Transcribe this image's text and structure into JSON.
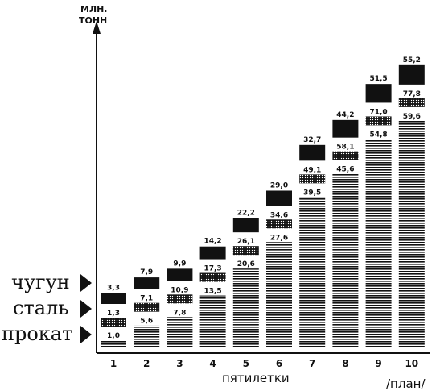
{
  "chart_data": {
    "type": "bar",
    "ylabel_lines": [
      "МЛН.",
      "ТОНН"
    ],
    "xlabel": "пятилетки",
    "categories": [
      "1",
      "2",
      "3",
      "4",
      "5",
      "6",
      "7",
      "8",
      "9",
      "10"
    ],
    "category_note": "/план/",
    "series": [
      {
        "name": "чугун",
        "values": [
          3.3,
          7.9,
          9.9,
          14.2,
          22.2,
          29.0,
          32.7,
          44.2,
          51.5,
          55.2
        ],
        "labels": [
          "3,3",
          "7,9",
          "9,9",
          "14,2",
          "22,2",
          "29,0",
          "32,7",
          "44,2",
          "51,5",
          "55,2"
        ]
      },
      {
        "name": "сталь",
        "values": [
          1.3,
          7.1,
          10.9,
          17.3,
          26.1,
          34.6,
          49.1,
          58.1,
          71.0,
          77.8
        ],
        "labels": [
          "1,3",
          "7,1",
          "10,9",
          "17,3",
          "26,1",
          "34,6",
          "49,1",
          "58,1",
          "71,0",
          "77,8"
        ]
      },
      {
        "name": "прокат",
        "values": [
          1.0,
          5.6,
          7.8,
          13.5,
          20.6,
          27.6,
          39.5,
          45.6,
          54.8,
          59.6
        ],
        "labels": [
          "1,0",
          "5,6",
          "7,8",
          "13,5",
          "20,6",
          "27,6",
          "39,5",
          "45,6",
          "54,8",
          "59,6"
        ]
      }
    ],
    "colors": {
      "ink": "#111111",
      "paper": "#ffffff"
    }
  }
}
